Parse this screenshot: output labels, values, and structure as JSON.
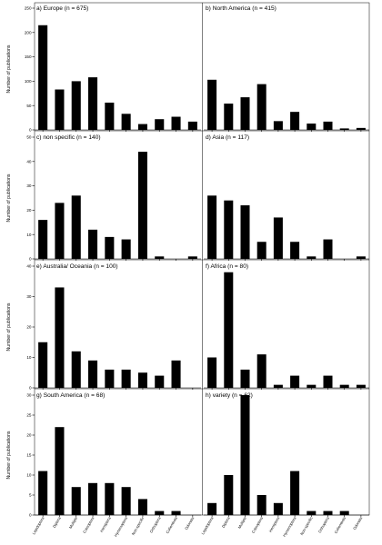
{
  "ylabel": "Number of publications",
  "categories": [
    "Lepidoptera",
    "Diptera",
    "Multiple",
    "Coleoptera",
    "Hemiptera",
    "Hymenoptera",
    "Non-specific",
    "Orthoptera",
    "Collembola",
    "Odonata"
  ],
  "chart_data": [
    {
      "type": "bar",
      "title": "a) Europe (n = 675)",
      "ylim": [
        0,
        250
      ],
      "yticks": [
        0,
        50,
        100,
        150,
        200,
        250
      ],
      "values": [
        215,
        83,
        100,
        108,
        56,
        33,
        12,
        22,
        27,
        17
      ]
    },
    {
      "type": "bar",
      "title": "b) North America (n = 415)",
      "ylim": [
        0,
        250
      ],
      "yticks": [],
      "values": [
        103,
        54,
        67,
        94,
        18,
        37,
        13,
        17,
        3,
        4
      ]
    },
    {
      "type": "bar",
      "title": "c) non specific (n = 140)",
      "ylim": [
        0,
        50
      ],
      "yticks": [
        0,
        10,
        20,
        30,
        40,
        50
      ],
      "values": [
        16,
        23,
        26,
        12,
        9,
        8,
        44,
        1,
        0,
        1
      ]
    },
    {
      "type": "bar",
      "title": "d) Asia (n = 117)",
      "ylim": [
        0,
        50
      ],
      "yticks": [],
      "values": [
        26,
        24,
        22,
        7,
        17,
        7,
        1,
        8,
        0,
        1
      ]
    },
    {
      "type": "bar",
      "title": "e) Australia/ Oceania (n = 100)",
      "ylim": [
        0,
        40
      ],
      "yticks": [
        0,
        10,
        20,
        30,
        40
      ],
      "values": [
        15,
        33,
        12,
        9,
        6,
        6,
        5,
        4,
        9,
        0
      ]
    },
    {
      "type": "bar",
      "title": "f) Africa (n = 80)",
      "ylim": [
        0,
        40
      ],
      "yticks": [],
      "values": [
        10,
        38,
        6,
        11,
        1,
        4,
        1,
        4,
        1,
        1
      ]
    },
    {
      "type": "bar",
      "title": "g) South America (n = 68)",
      "ylim": [
        0,
        30
      ],
      "yticks": [
        0,
        5,
        10,
        15,
        20,
        25,
        30
      ],
      "values": [
        11,
        22,
        7,
        8,
        8,
        7,
        4,
        1,
        1,
        0
      ]
    },
    {
      "type": "bar",
      "title": "h) variety (n = 62)",
      "ylim": [
        0,
        30
      ],
      "yticks": [],
      "values": [
        3,
        10,
        30,
        5,
        3,
        11,
        1,
        1,
        1,
        0
      ]
    }
  ]
}
